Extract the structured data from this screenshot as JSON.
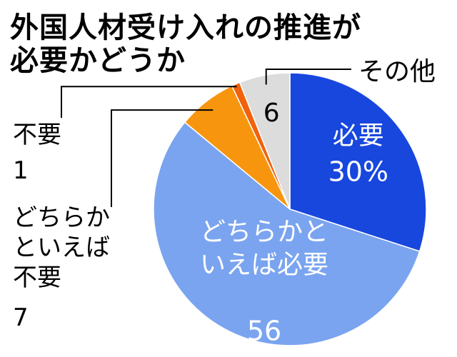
{
  "chart_data": {
    "type": "pie",
    "title_lines": [
      "外国人材受け入れの推進が",
      "必要かどうか"
    ],
    "unit": "%",
    "slices": [
      {
        "label": "必要",
        "label_lines": [
          "必要"
        ],
        "value": 30,
        "value_text": "30%",
        "color": "#1847de",
        "text_color": "#ffffff"
      },
      {
        "label": "どちらかといえば必要",
        "label_lines": [
          "どちらかと",
          "いえば必要"
        ],
        "value": 56,
        "value_text": "56",
        "color": "#7aa4ef",
        "text_color": "#ffffff"
      },
      {
        "label": "どちらかといえば不要",
        "label_lines": [
          "どちらか",
          "といえば",
          "不要"
        ],
        "value": 7,
        "value_text": "7",
        "color": "#f7960e",
        "text_color": "#000000"
      },
      {
        "label": "不要",
        "label_lines": [
          "不要"
        ],
        "value": 1,
        "value_text": "1",
        "color": "#f0620c",
        "text_color": "#000000"
      },
      {
        "label": "その他",
        "label_lines": [
          "その他"
        ],
        "value": 6,
        "value_text": "6",
        "color": "#dcdcdc",
        "text_color": "#000000"
      }
    ]
  }
}
